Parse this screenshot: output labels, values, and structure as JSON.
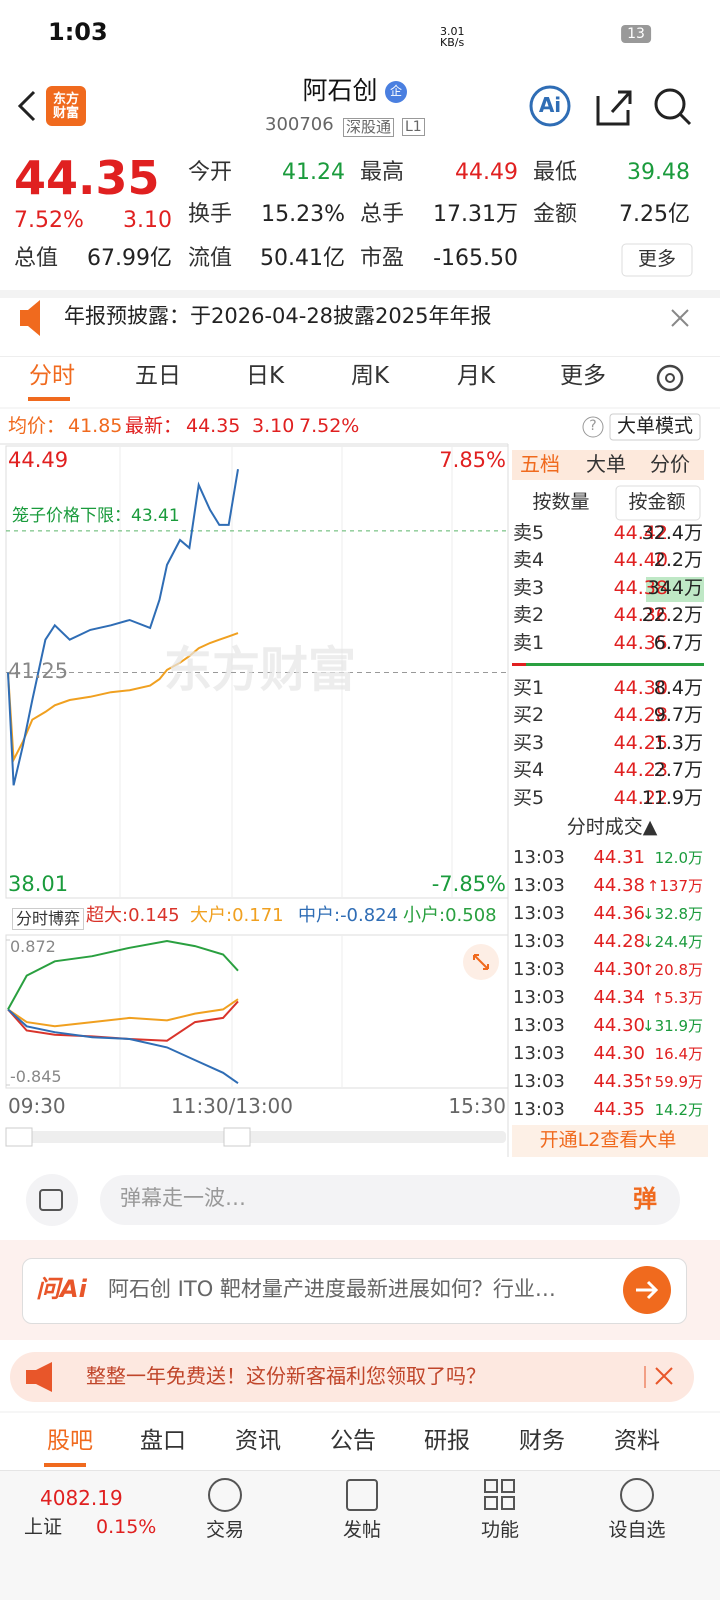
{
  "status_bar": {
    "time": "1:03",
    "net_speed": "3.01 KB/s",
    "battery": "13"
  },
  "header": {
    "logo": "东方财富",
    "name": "阿石创",
    "badge": "企",
    "code": "300706",
    "exchange": "深股通",
    "level": "L1",
    "ai": "Ai"
  },
  "quote": {
    "price": "44.35",
    "change_pct": "7.52%",
    "change": "3.10",
    "more": "更多",
    "fields": [
      {
        "label": "今开",
        "value": "41.24",
        "color": "#1a9b3c"
      },
      {
        "label": "最高",
        "value": "44.49",
        "color": "#e02020"
      },
      {
        "label": "最低",
        "value": "39.48",
        "color": "#1a9b3c"
      },
      {
        "label": "换手",
        "value": "15.23%",
        "color": "#222"
      },
      {
        "label": "总手",
        "value": "17.31万",
        "color": "#222"
      },
      {
        "label": "金额",
        "value": "7.25亿",
        "color": "#222"
      },
      {
        "label": "总值",
        "value": "67.99亿",
        "color": "#222"
      },
      {
        "label": "流值",
        "value": "50.41亿",
        "color": "#222"
      },
      {
        "label": "市盈",
        "value": "-165.50",
        "color": "#222"
      }
    ]
  },
  "notice": "年报预披露：于2026-04-28披露2025年年报",
  "tabs": [
    "分时",
    "五日",
    "日K",
    "周K",
    "月K",
    "更多"
  ],
  "info_line": {
    "avg_label": "均价：",
    "avg": "41.85",
    "latest_label": "最新：",
    "latest": "44.35",
    "change": "3.10",
    "pct": "7.52%",
    "help": "?",
    "mode": "大单模式"
  },
  "chart_data": [
    {
      "type": "line",
      "watermark": "东方财富",
      "limit_label": "笼子价格下限：43.41",
      "limit": 43.41,
      "pct_top": "7.85%",
      "pct_bottom": "-7.85%",
      "ylim": [
        38.01,
        44.49
      ],
      "yticks": [
        44.49,
        41.25,
        38.01
      ],
      "xticks": [
        "09:30",
        "11:30/13:00",
        "15:30"
      ],
      "x": [
        0,
        3,
        8,
        13,
        20,
        25,
        33,
        44,
        55,
        65,
        76,
        81,
        85,
        92,
        97,
        102,
        108,
        113,
        118,
        123
      ],
      "series": [
        {
          "color": "#2f6db5",
          "values": [
            41.25,
            39.53,
            40.14,
            40.83,
            41.75,
            41.97,
            41.75,
            41.9,
            41.97,
            42.05,
            41.93,
            42.36,
            42.89,
            43.27,
            43.15,
            44.11,
            43.73,
            43.5,
            43.5,
            44.35
          ]
        },
        {
          "color": "#f0a020",
          "values": [
            41.25,
            39.92,
            40.2,
            40.53,
            40.65,
            40.75,
            40.83,
            40.88,
            40.95,
            40.98,
            41.05,
            41.15,
            41.29,
            41.4,
            41.5,
            41.62,
            41.7,
            41.75,
            41.8,
            41.85
          ]
        }
      ]
    },
    {
      "type": "line",
      "title": "分时博弈",
      "ylim": [
        -0.845,
        0.872
      ],
      "yticks": [
        0.872,
        -0.845
      ],
      "x": [
        0,
        10,
        25,
        45,
        65,
        85,
        100,
        115,
        123
      ],
      "series": [
        {
          "name": "超大:0.145",
          "color": "#d9342b",
          "values": [
            0.05,
            -0.2,
            -0.25,
            -0.27,
            -0.3,
            -0.32,
            -0.1,
            -0.05,
            0.145
          ]
        },
        {
          "name": "大户:0.171",
          "color": "#f0a020",
          "values": [
            0.05,
            -0.1,
            -0.15,
            -0.1,
            -0.05,
            -0.08,
            0.0,
            0.05,
            0.171
          ]
        },
        {
          "name": "中户:-0.824",
          "color": "#2f6db5",
          "values": [
            0.05,
            -0.15,
            -0.22,
            -0.28,
            -0.3,
            -0.4,
            -0.55,
            -0.7,
            -0.824
          ]
        },
        {
          "name": "小户:0.508",
          "color": "#2aa040",
          "values": [
            0.05,
            0.45,
            0.62,
            0.68,
            0.78,
            0.86,
            0.8,
            0.7,
            0.508
          ]
        }
      ]
    }
  ],
  "order_panel": {
    "tabs": [
      "五档",
      "大单",
      "分价"
    ],
    "subtabs": [
      "按数量",
      "按金额"
    ],
    "asks": [
      {
        "label": "卖5",
        "price": "44.42",
        "vol": "32.4万"
      },
      {
        "label": "卖4",
        "price": "44.40",
        "vol": "2.2万"
      },
      {
        "label": "卖3",
        "price": "44.38",
        "vol": "344万"
      },
      {
        "label": "卖2",
        "price": "44.36",
        "vol": "22.2万"
      },
      {
        "label": "卖1",
        "price": "44.35",
        "vol": "6.7万"
      }
    ],
    "bids": [
      {
        "label": "买1",
        "price": "44.30",
        "vol": "8.4万"
      },
      {
        "label": "买2",
        "price": "44.28",
        "vol": "9.7万"
      },
      {
        "label": "买3",
        "price": "44.25",
        "vol": "1.3万"
      },
      {
        "label": "买4",
        "price": "44.23",
        "vol": "2.7万"
      },
      {
        "label": "买5",
        "price": "44.22",
        "vol": "11.9万"
      }
    ],
    "trades_title": "分时成交▲",
    "trades": [
      {
        "time": "13:03",
        "price": "44.31",
        "vol": "12.0万",
        "color": "#1a9b3c"
      },
      {
        "time": "13:03",
        "price": "44.38",
        "vol": "↑137万",
        "color": "#e02020"
      },
      {
        "time": "13:03",
        "price": "44.36",
        "vol": "↓32.8万",
        "color": "#1a9b3c"
      },
      {
        "time": "13:03",
        "price": "44.28",
        "vol": "↓24.4万",
        "color": "#1a9b3c"
      },
      {
        "time": "13:03",
        "price": "44.30",
        "vol": "↑20.8万",
        "color": "#e02020"
      },
      {
        "time": "13:03",
        "price": "44.34",
        "vol": "↑5.3万",
        "color": "#e02020"
      },
      {
        "time": "13:03",
        "price": "44.30",
        "vol": "↓31.9万",
        "color": "#1a9b3c"
      },
      {
        "time": "13:03",
        "price": "44.30",
        "vol": "16.4万",
        "color": "#e02020"
      },
      {
        "time": "13:03",
        "price": "44.35",
        "vol": "↑59.9万",
        "color": "#e02020"
      },
      {
        "time": "13:03",
        "price": "44.35",
        "vol": "14.2万",
        "color": "#1a9b3c"
      }
    ],
    "l2": "开通L2查看大单"
  },
  "danmaku": {
    "placeholder": "弹幕走一波…",
    "button": "弹"
  },
  "ai_bar": {
    "brand": "问Ai",
    "question": "阿石创 ITO 靶材量产进度最新进展如何？行业…"
  },
  "promo": "整整一年免费送！这份新客福利您领取了吗？",
  "section_tabs": [
    "股吧",
    "盘口",
    "资讯",
    "公告",
    "研报",
    "财务",
    "资料"
  ],
  "bottom_nav": {
    "index_value": "4082.19",
    "index_name": "上证",
    "index_pct": "0.15%",
    "items": [
      "交易",
      "发帖",
      "功能",
      "设自选"
    ]
  }
}
